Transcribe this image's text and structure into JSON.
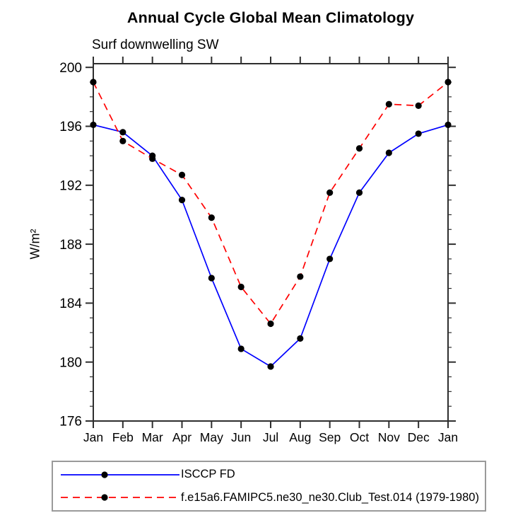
{
  "chart_data": {
    "type": "line",
    "title": "Annual Cycle Global Mean Climatology",
    "subtitle": "Surf downwelling SW",
    "ylabel": "W/m²",
    "xlabel": "",
    "categories": [
      "Jan",
      "Feb",
      "Mar",
      "Apr",
      "May",
      "Jun",
      "Jul",
      "Aug",
      "Sep",
      "Oct",
      "Nov",
      "Dec",
      "Jan"
    ],
    "series": [
      {
        "name": "ISCCP FD",
        "color": "#0000ff",
        "line_style": "solid",
        "marker": "filled-circle-icon",
        "marker_color": "#000000",
        "values": [
          196.1,
          195.6,
          194.0,
          191.0,
          185.7,
          180.9,
          179.7,
          181.6,
          187.0,
          191.5,
          194.2,
          195.5,
          196.1
        ]
      },
      {
        "name": "f.e15a6.FAMIPC5.ne30_ne30.Club_Test.014 (1979-1980)",
        "color": "#ff0000",
        "line_style": "dashed",
        "marker": "filled-circle-icon",
        "marker_color": "#000000",
        "values": [
          199.0,
          195.0,
          193.8,
          192.7,
          189.8,
          185.1,
          182.6,
          185.8,
          191.5,
          194.5,
          197.5,
          197.4,
          199.0
        ]
      }
    ],
    "ylim": [
      176,
      200.25
    ],
    "yticks_major": [
      176,
      180,
      184,
      188,
      192,
      196,
      200
    ],
    "ytick_minor_interval": 1,
    "grid": false,
    "legend_position": "bottom-box",
    "axis_color": "#2e2e2e",
    "legend_border_color": "#9a9a9a"
  }
}
